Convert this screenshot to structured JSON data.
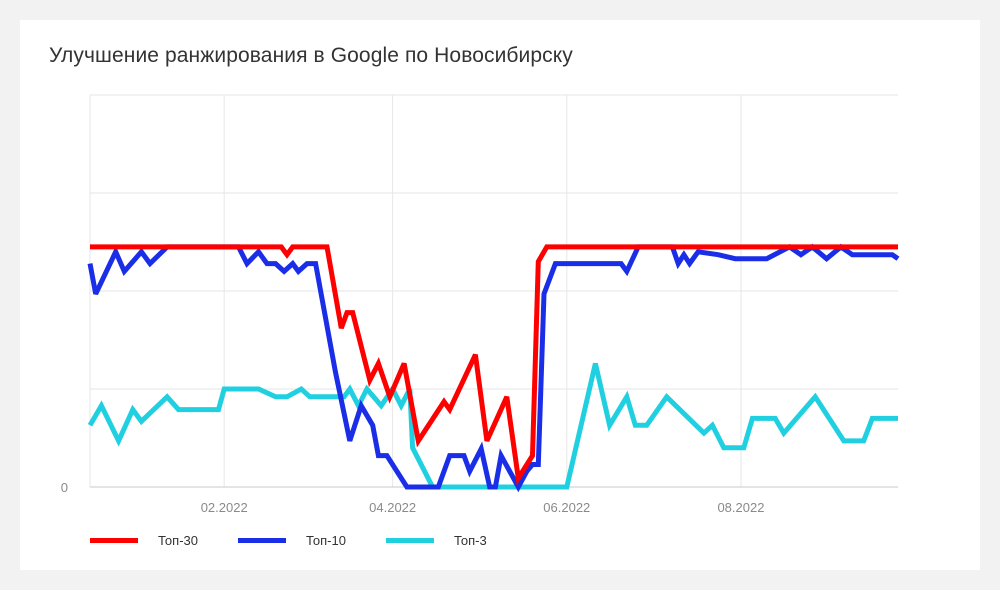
{
  "title": "Улучшение ранжирования в Google по Новосибирску",
  "chart_data": {
    "type": "line",
    "title": "Улучшение ранжирования в Google по Новосибирску",
    "xlabel": "",
    "ylabel": "",
    "x_range": [
      "2021-12-16",
      "2022-09-25"
    ],
    "x_ticks": [
      "02.2022",
      "04.2022",
      "06.2022",
      "08.2022"
    ],
    "y_ticks": [
      "0"
    ],
    "ylim": [
      0,
      40
    ],
    "grid": true,
    "legend_position": "bottom-left",
    "series": [
      {
        "name": "Топ-30",
        "color": "#ff0000",
        "points": [
          [
            "2021-12-16",
            24.5
          ],
          [
            "2022-01-26",
            24.5
          ],
          [
            "2022-02-09",
            24.5
          ],
          [
            "2022-02-16",
            24.5
          ],
          [
            "2022-02-21",
            24.5
          ],
          [
            "2022-02-23",
            23.7
          ],
          [
            "2022-02-25",
            24.5
          ],
          [
            "2022-03-02",
            24.5
          ],
          [
            "2022-03-09",
            24.5
          ],
          [
            "2022-03-14",
            16.2
          ],
          [
            "2022-03-16",
            17.8
          ],
          [
            "2022-03-18",
            17.8
          ],
          [
            "2022-03-24",
            10.9
          ],
          [
            "2022-03-27",
            12.6
          ],
          [
            "2022-03-31",
            9.2
          ],
          [
            "2022-04-05",
            12.6
          ],
          [
            "2022-04-10",
            4.7
          ],
          [
            "2022-04-19",
            8.7
          ],
          [
            "2022-04-21",
            7.9
          ],
          [
            "2022-04-30",
            13.5
          ],
          [
            "2022-05-04",
            4.7
          ],
          [
            "2022-05-11",
            9.2
          ],
          [
            "2022-05-15",
            0.9
          ],
          [
            "2022-05-20",
            3.2
          ],
          [
            "2022-05-22",
            23.0
          ],
          [
            "2022-05-25",
            24.5
          ],
          [
            "2022-07-28",
            24.5
          ],
          [
            "2022-09-25",
            24.5
          ]
        ]
      },
      {
        "name": "Топ-10",
        "color": "#1a2ee8",
        "points": [
          [
            "2021-12-16",
            22.8
          ],
          [
            "2021-12-18",
            19.7
          ],
          [
            "2021-12-25",
            24.0
          ],
          [
            "2021-12-28",
            22.0
          ],
          [
            "2022-01-03",
            24.0
          ],
          [
            "2022-01-06",
            22.8
          ],
          [
            "2022-01-12",
            24.5
          ],
          [
            "2022-02-06",
            24.5
          ],
          [
            "2022-02-09",
            22.8
          ],
          [
            "2022-02-13",
            24.0
          ],
          [
            "2022-02-16",
            22.8
          ],
          [
            "2022-02-19",
            22.8
          ],
          [
            "2022-02-22",
            22.0
          ],
          [
            "2022-02-25",
            22.8
          ],
          [
            "2022-02-27",
            22.0
          ],
          [
            "2022-03-02",
            22.8
          ],
          [
            "2022-03-05",
            22.8
          ],
          [
            "2022-03-12",
            11.7
          ],
          [
            "2022-03-17",
            4.7
          ],
          [
            "2022-03-21",
            8.3
          ],
          [
            "2022-03-25",
            6.3
          ],
          [
            "2022-03-27",
            3.2
          ],
          [
            "2022-03-30",
            3.2
          ],
          [
            "2022-04-06",
            0.0
          ],
          [
            "2022-04-17",
            0.0
          ],
          [
            "2022-04-21",
            3.2
          ],
          [
            "2022-04-26",
            3.2
          ],
          [
            "2022-04-28",
            1.6
          ],
          [
            "2022-05-02",
            3.9
          ],
          [
            "2022-05-05",
            0.0
          ],
          [
            "2022-05-07",
            0.0
          ],
          [
            "2022-05-09",
            3.2
          ],
          [
            "2022-05-15",
            0.0
          ],
          [
            "2022-05-18",
            1.6
          ],
          [
            "2022-05-20",
            2.3
          ],
          [
            "2022-05-22",
            2.3
          ],
          [
            "2022-05-24",
            19.7
          ],
          [
            "2022-05-28",
            22.8
          ],
          [
            "2022-06-20",
            22.8
          ],
          [
            "2022-06-22",
            22.0
          ],
          [
            "2022-06-26",
            24.5
          ],
          [
            "2022-07-08",
            24.5
          ],
          [
            "2022-07-10",
            22.8
          ],
          [
            "2022-07-12",
            23.7
          ],
          [
            "2022-07-14",
            22.8
          ],
          [
            "2022-07-17",
            24.0
          ],
          [
            "2022-07-24",
            23.7
          ],
          [
            "2022-07-30",
            23.3
          ],
          [
            "2022-08-10",
            23.3
          ],
          [
            "2022-08-18",
            24.5
          ],
          [
            "2022-08-22",
            23.7
          ],
          [
            "2022-08-26",
            24.5
          ],
          [
            "2022-08-31",
            23.3
          ],
          [
            "2022-09-05",
            24.5
          ],
          [
            "2022-09-09",
            23.7
          ],
          [
            "2022-09-23",
            23.7
          ],
          [
            "2022-09-25",
            23.3
          ]
        ]
      },
      {
        "name": "Топ-3",
        "color": "#21d0e0",
        "points": [
          [
            "2021-12-16",
            6.3
          ],
          [
            "2021-12-20",
            8.3
          ],
          [
            "2021-12-26",
            4.7
          ],
          [
            "2021-12-31",
            7.9
          ],
          [
            "2022-01-03",
            6.7
          ],
          [
            "2022-01-12",
            9.2
          ],
          [
            "2022-01-16",
            7.9
          ],
          [
            "2022-01-30",
            7.9
          ],
          [
            "2022-02-01",
            10.0
          ],
          [
            "2022-02-13",
            10.0
          ],
          [
            "2022-02-19",
            9.2
          ],
          [
            "2022-02-23",
            9.2
          ],
          [
            "2022-02-28",
            10.0
          ],
          [
            "2022-03-03",
            9.2
          ],
          [
            "2022-03-15",
            9.2
          ],
          [
            "2022-03-17",
            10.0
          ],
          [
            "2022-03-20",
            8.3
          ],
          [
            "2022-03-23",
            10.0
          ],
          [
            "2022-03-28",
            8.3
          ],
          [
            "2022-04-01",
            10.0
          ],
          [
            "2022-04-04",
            8.3
          ],
          [
            "2022-04-07",
            10.0
          ],
          [
            "2022-04-08",
            4.0
          ],
          [
            "2022-04-15",
            0.0
          ],
          [
            "2022-06-01",
            0.0
          ],
          [
            "2022-06-11",
            12.6
          ],
          [
            "2022-06-16",
            6.3
          ],
          [
            "2022-06-22",
            9.2
          ],
          [
            "2022-06-25",
            6.3
          ],
          [
            "2022-06-29",
            6.3
          ],
          [
            "2022-07-06",
            9.2
          ],
          [
            "2022-07-19",
            5.5
          ],
          [
            "2022-07-22",
            6.3
          ],
          [
            "2022-07-26",
            4.0
          ],
          [
            "2022-08-02",
            4.0
          ],
          [
            "2022-08-05",
            7.0
          ],
          [
            "2022-08-13",
            7.0
          ],
          [
            "2022-08-16",
            5.5
          ],
          [
            "2022-08-27",
            9.2
          ],
          [
            "2022-09-06",
            4.7
          ],
          [
            "2022-09-13",
            4.7
          ],
          [
            "2022-09-16",
            7.0
          ],
          [
            "2022-09-25",
            7.0
          ]
        ]
      }
    ]
  },
  "legend": [
    {
      "label": "Топ-30",
      "color": "#ff0000"
    },
    {
      "label": "Топ-10",
      "color": "#1a2ee8"
    },
    {
      "label": "Топ-3",
      "color": "#21d0e0"
    }
  ]
}
